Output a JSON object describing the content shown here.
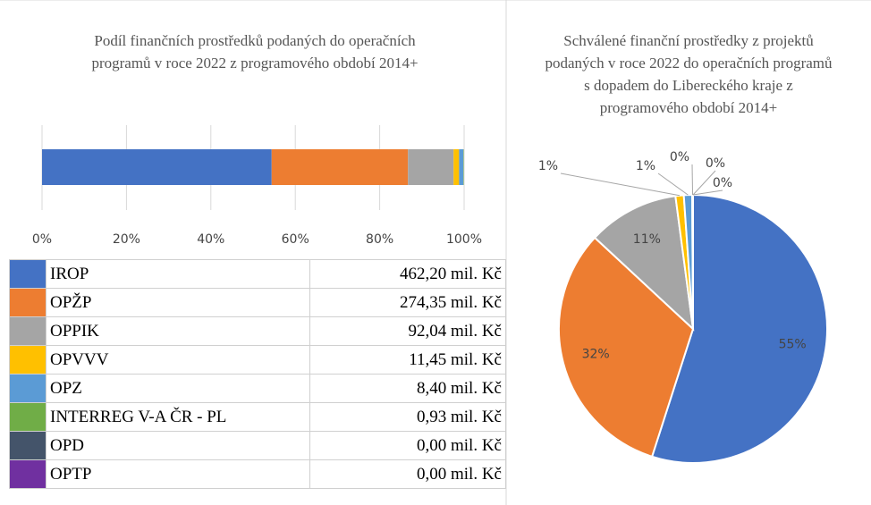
{
  "chart_data": [
    {
      "type": "bar",
      "stacked": true,
      "orientation": "horizontal",
      "title": "Podíl finančních prostředků podaných do operačních programů v roce 2022 z programového období 2014+",
      "series": [
        {
          "name": "IROP",
          "color": "#4472c4",
          "values": [
            54.4
          ]
        },
        {
          "name": "OPŽP",
          "color": "#ed7d31",
          "values": [
            32.3
          ]
        },
        {
          "name": "OPPIK",
          "color": "#a5a5a5",
          "values": [
            10.8
          ]
        },
        {
          "name": "OPVVV",
          "color": "#ffc000",
          "values": [
            1.3
          ]
        },
        {
          "name": "OPZ",
          "color": "#5b9bd5",
          "values": [
            1.0
          ]
        },
        {
          "name": "INTERREG V-A ČR - PL",
          "color": "#70ad47",
          "values": [
            0.1
          ]
        },
        {
          "name": "OPD",
          "color": "#44546a",
          "values": [
            0
          ]
        },
        {
          "name": "OPTP",
          "color": "#7030a0",
          "values": [
            0
          ]
        }
      ],
      "xlim": [
        0,
        100
      ],
      "xticks": [
        {
          "value": 0,
          "label": "0%"
        },
        {
          "value": 20,
          "label": "20%"
        },
        {
          "value": 40,
          "label": "40%"
        },
        {
          "value": 60,
          "label": "60%"
        },
        {
          "value": 80,
          "label": "80%"
        },
        {
          "value": 100,
          "label": "100%"
        }
      ],
      "grid": true
    },
    {
      "type": "pie",
      "title": "Schválené finanční prostředky z projektů podaných v roce 2022 do operačních programů s dopadem do Libereckého kraje z programového období 2014+",
      "values": [
        55,
        32,
        11,
        1,
        1,
        0.1,
        0,
        0
      ],
      "value_labels": [
        "55%",
        "32%",
        "11%",
        "1%",
        "1%",
        "0%",
        "0%",
        "0%"
      ],
      "colors": [
        "#4472c4",
        "#ed7d31",
        "#a5a5a5",
        "#ffc000",
        "#5b9bd5",
        "#70ad47",
        "#44546a",
        "#7030a0"
      ]
    }
  ],
  "table": {
    "amounts": [
      "462,20 mil. Kč",
      "274,35 mil. Kč",
      "92,04 mil. Kč",
      "11,45 mil. Kč",
      "8,40 mil. Kč",
      "0,93 mil. Kč",
      "0,00 mil. Kč",
      "0,00 mil. Kč"
    ]
  }
}
